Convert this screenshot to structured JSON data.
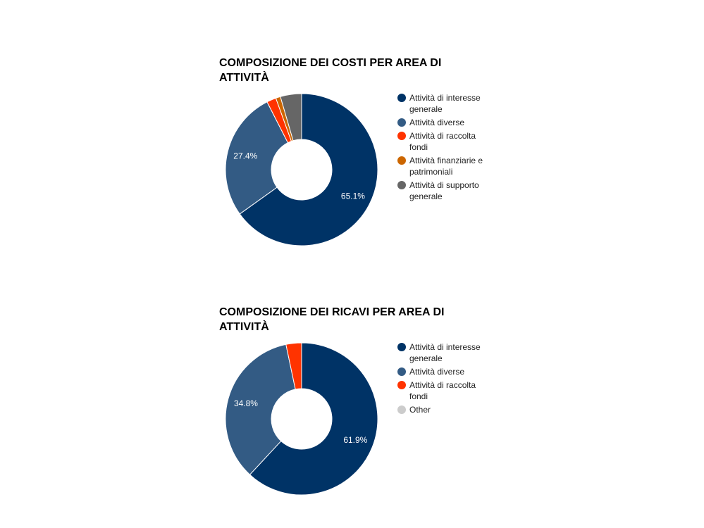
{
  "chart_data": [
    {
      "type": "pie",
      "title": "COMPOSIZIONE DEI COSTI PER AREA DI ATTIVITÀ",
      "categories": [
        "Attività di interesse generale",
        "Attività diverse",
        "Attività di raccolta fondi",
        "Attività finanziarie e patrimoniali",
        "Attività di supporto generale"
      ],
      "values": [
        65.1,
        27.4,
        2.0,
        1.0,
        4.5
      ],
      "value_labels": [
        "65.1%",
        "27.4%",
        "",
        "",
        ""
      ],
      "colors": [
        "#003366",
        "#335b84",
        "#ff3300",
        "#cc6600",
        "#666666"
      ],
      "donut": true,
      "legend_position": "right"
    },
    {
      "type": "pie",
      "title": "COMPOSIZIONE DEI RICAVI PER AREA DI ATTIVITÀ",
      "categories": [
        "Attività di interesse generale",
        "Attività diverse",
        "Attività di raccolta fondi",
        "Other"
      ],
      "values": [
        61.9,
        34.8,
        3.3,
        0
      ],
      "value_labels": [
        "61.9%",
        "34.8%",
        "",
        ""
      ],
      "colors": [
        "#003366",
        "#335b84",
        "#ff3300",
        "#cccccc"
      ],
      "donut": true,
      "legend_position": "right"
    }
  ]
}
